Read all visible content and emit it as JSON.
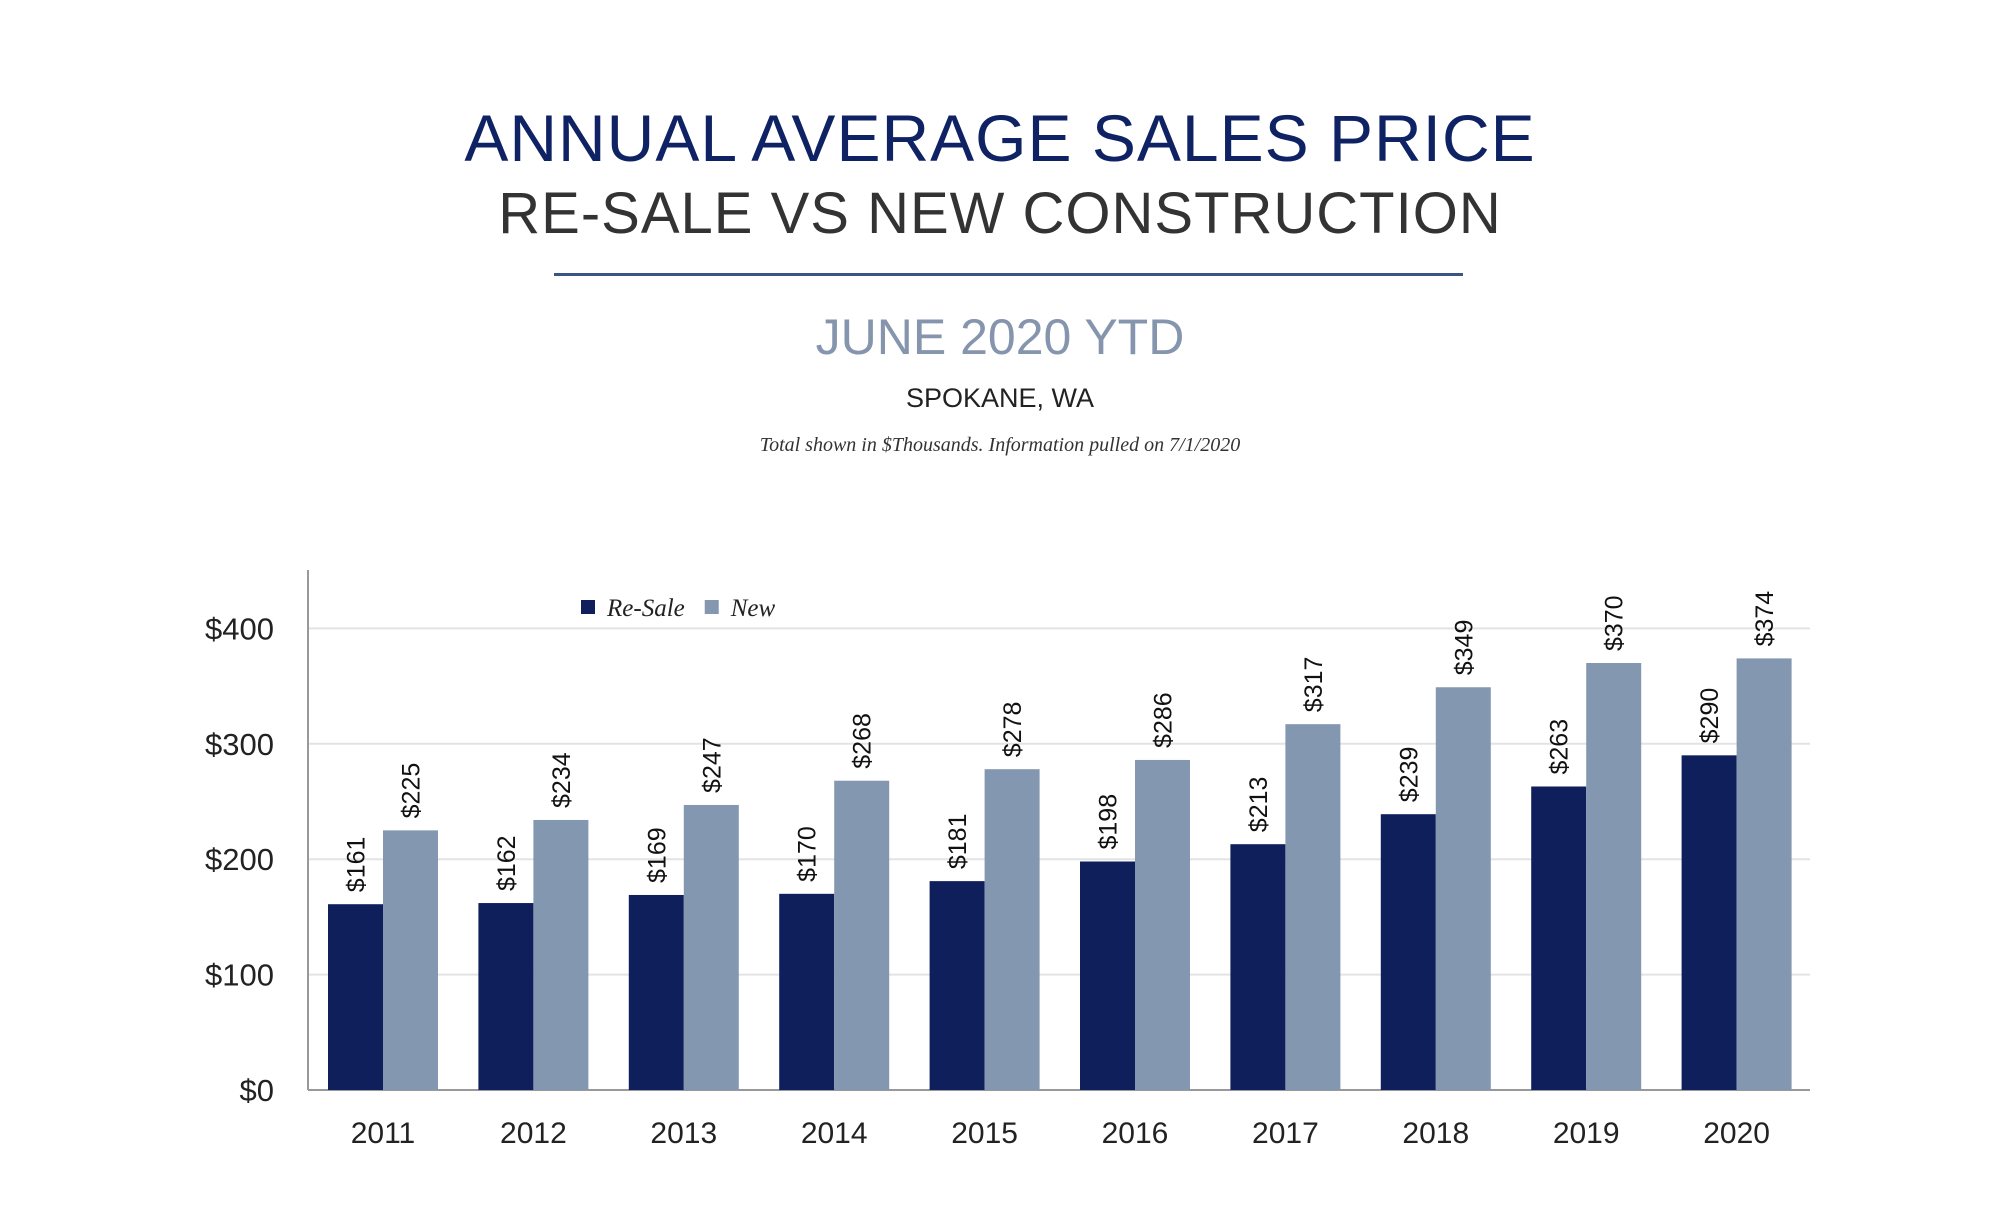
{
  "header": {
    "title": "ANNUAL AVERAGE SALES PRICE",
    "subtitle": "RE-SALE VS NEW CONSTRUCTION",
    "period": "JUNE 2020 YTD",
    "location": "SPOKANE, WA",
    "note": "Total shown in $Thousands. Information pulled on 7/1/2020"
  },
  "chart_data": {
    "type": "bar",
    "categories": [
      "2011",
      "2012",
      "2013",
      "2014",
      "2015",
      "2016",
      "2017",
      "2018",
      "2019",
      "2020"
    ],
    "series": [
      {
        "name": "Re-Sale",
        "color": "#0f1f5c",
        "values": [
          161,
          162,
          169,
          170,
          181,
          198,
          213,
          239,
          263,
          290
        ]
      },
      {
        "name": "New",
        "color": "#8497b0",
        "values": [
          225,
          234,
          247,
          268,
          278,
          286,
          317,
          349,
          370,
          374
        ]
      }
    ],
    "data_labels": true,
    "label_prefix": "$",
    "yticks": [
      "$0",
      "$100",
      "$200",
      "$300",
      "$400"
    ],
    "ylim": [
      0,
      450
    ],
    "grid": true,
    "legend": "top-left"
  }
}
